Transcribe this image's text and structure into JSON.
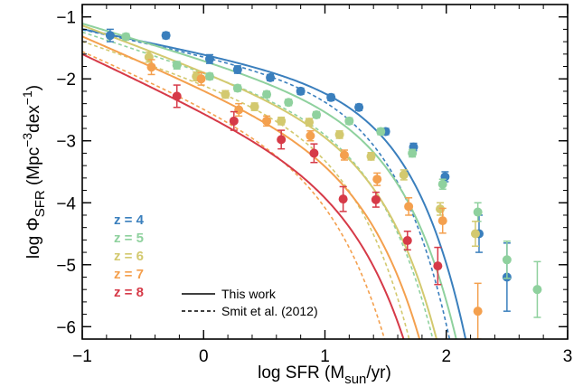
{
  "chart_data": {
    "type": "scatter",
    "xlabel": "log SFR (M",
    "xlabel_sub": "sun",
    "xlabel_end": "/yr)",
    "ylabel": "log Φ",
    "ylabel_sub": "SFR",
    "ylabel_units": " (Mpc",
    "ylabel_sup1": "−3",
    "ylabel_mid": "dex",
    "ylabel_sup2": "−1",
    "ylabel_end": ")",
    "xlim": [
      -1,
      3
    ],
    "ylim": [
      -6.2,
      -0.8
    ],
    "xticks": [
      {
        "value": -1,
        "label": "−1"
      },
      {
        "value": 0,
        "label": "0"
      },
      {
        "value": 1,
        "label": "1"
      },
      {
        "value": 2,
        "label": "2"
      },
      {
        "value": 3,
        "label": "3"
      }
    ],
    "yticks": [
      {
        "value": -1,
        "label": "−1"
      },
      {
        "value": -2,
        "label": "−2"
      },
      {
        "value": -3,
        "label": "−3"
      },
      {
        "value": -4,
        "label": "−4"
      },
      {
        "value": -5,
        "label": "−5"
      },
      {
        "value": -6,
        "label": "−6"
      }
    ],
    "legend": {
      "styles": [
        {
          "label": "This work",
          "dash": "solid"
        },
        {
          "label": "Smit et al. (2012)",
          "dash": "dashed"
        }
      ]
    },
    "series": [
      {
        "name": "z = 4",
        "color": "#3a7fbd",
        "points": [
          [
            -0.77,
            -1.3,
            0.1
          ],
          [
            -0.31,
            -1.3,
            0.05
          ],
          [
            0.05,
            -1.68,
            0.07
          ],
          [
            0.28,
            -1.85,
            0.06
          ],
          [
            0.55,
            -1.98,
            0.05
          ],
          [
            0.8,
            -2.2,
            0.05
          ],
          [
            1.05,
            -2.3,
            0.05
          ],
          [
            1.28,
            -2.46,
            0.05
          ],
          [
            1.5,
            -2.85,
            0.05
          ],
          [
            1.73,
            -3.1,
            0.06
          ],
          [
            1.99,
            -3.58,
            0.08
          ],
          [
            2.27,
            -4.5,
            0.3
          ],
          [
            2.5,
            -5.2,
            0.55
          ]
        ],
        "schechter_this_work": {
          "logSFRstar": 1.22,
          "logPhiStar": -2.06,
          "alpha": -1.39
        },
        "schechter_smit2012": {
          "logSFRstar": 1.09,
          "logPhiStar": -2.06,
          "alpha": -1.41
        }
      },
      {
        "name": "z = 5",
        "color": "#8fd19e",
        "points": [
          [
            -0.64,
            -1.32,
            0.05
          ],
          [
            -0.22,
            -1.78,
            0.06
          ],
          [
            0.05,
            -1.96,
            0.05
          ],
          [
            0.28,
            -2.15,
            0.05
          ],
          [
            0.52,
            -2.25,
            0.05
          ],
          [
            0.7,
            -2.38,
            0.05
          ],
          [
            0.93,
            -2.58,
            0.05
          ],
          [
            1.2,
            -2.68,
            0.05
          ],
          [
            1.46,
            -2.85,
            0.05
          ],
          [
            1.72,
            -3.2,
            0.06
          ],
          [
            1.97,
            -3.7,
            0.08
          ],
          [
            2.26,
            -4.15,
            0.15
          ],
          [
            2.5,
            -4.92,
            0.3
          ],
          [
            2.75,
            -5.4,
            0.45
          ]
        ],
        "schechter_this_work": {
          "logSFRstar": 1.2,
          "logPhiStar": -2.38,
          "alpha": -1.58
        },
        "schechter_smit2012": {
          "logSFRstar": 1.03,
          "logPhiStar": -2.52,
          "alpha": -1.63
        }
      },
      {
        "name": "z = 6",
        "color": "#d3c96f",
        "points": [
          [
            -0.45,
            -1.65,
            0.08
          ],
          [
            -0.06,
            -1.96,
            0.07
          ],
          [
            0.18,
            -2.25,
            0.06
          ],
          [
            0.42,
            -2.45,
            0.06
          ],
          [
            0.64,
            -2.68,
            0.06
          ],
          [
            0.87,
            -2.7,
            0.06
          ],
          [
            1.12,
            -2.9,
            0.06
          ],
          [
            1.38,
            -3.25,
            0.06
          ],
          [
            1.65,
            -3.55,
            0.08
          ],
          [
            1.95,
            -4.1,
            0.1
          ],
          [
            2.24,
            -4.5,
            0.2
          ]
        ],
        "schechter_this_work": {
          "logSFRstar": 1.09,
          "logPhiStar": -2.66,
          "alpha": -1.73
        },
        "schechter_smit2012": {
          "logSFRstar": 0.85,
          "logPhiStar": -2.61,
          "alpha": -1.66
        }
      },
      {
        "name": "z = 7",
        "color": "#f4a04e",
        "points": [
          [
            -0.43,
            -1.81,
            0.12
          ],
          [
            -0.02,
            -2.0,
            0.1
          ],
          [
            0.29,
            -2.5,
            0.1
          ],
          [
            0.52,
            -2.68,
            0.08
          ],
          [
            0.88,
            -2.92,
            0.08
          ],
          [
            1.16,
            -3.23,
            0.08
          ],
          [
            1.43,
            -3.62,
            0.1
          ],
          [
            1.69,
            -4.06,
            0.14
          ],
          [
            1.97,
            -4.29,
            0.2
          ],
          [
            2.26,
            -5.75,
            0.45
          ]
        ],
        "schechter_this_work": {
          "logSFRstar": 1.01,
          "logPhiStar": -3.0,
          "alpha": -1.84
        },
        "schechter_smit2012": {
          "logSFRstar": 0.73,
          "logPhiStar": -3.04,
          "alpha": -1.86
        }
      },
      {
        "name": "z = 8",
        "color": "#d63a48",
        "points": [
          [
            -0.22,
            -2.28,
            0.18
          ],
          [
            0.25,
            -2.68,
            0.15
          ],
          [
            0.64,
            -2.98,
            0.15
          ],
          [
            0.91,
            -3.2,
            0.15
          ],
          [
            1.15,
            -3.94,
            0.2
          ],
          [
            1.42,
            -3.95,
            0.12
          ],
          [
            1.68,
            -4.61,
            0.15
          ],
          [
            1.93,
            -5.02,
            0.3
          ]
        ],
        "schechter_this_work": {
          "logSFRstar": 0.95,
          "logPhiStar": -3.39,
          "alpha": -1.92
        }
      }
    ]
  }
}
